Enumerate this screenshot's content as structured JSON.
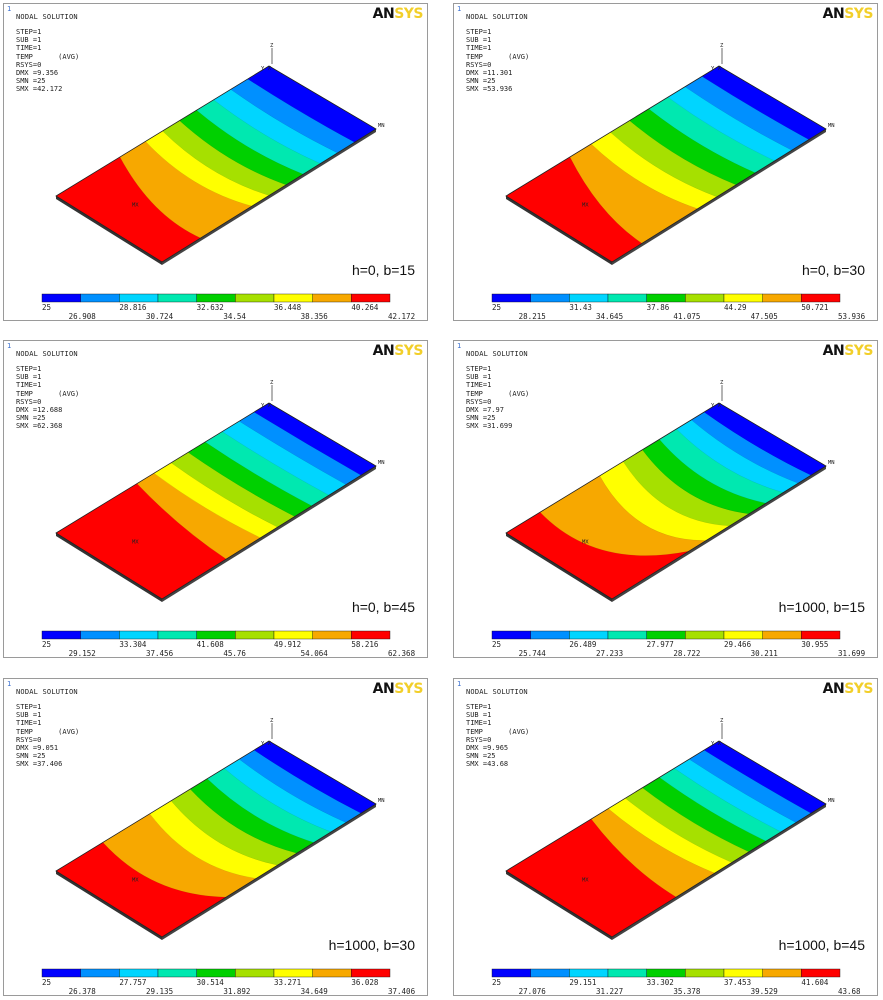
{
  "common": {
    "corner": "1",
    "title": "NODAL SOLUTION",
    "logo_main": "AN",
    "logo_suffix": "SYS",
    "min_label": "MN",
    "max_label": "MX",
    "axis_z": "Z",
    "axis_xy": "Y X"
  },
  "colors": [
    "#0000ff",
    "#0090ff",
    "#00d5ff",
    "#00e8b0",
    "#00d000",
    "#a6e000",
    "#ffff00",
    "#f7a800",
    "#ff0000"
  ],
  "panels": [
    {
      "caption": "h=0, b=15",
      "info": [
        "STEP=1",
        "SUB =1",
        "TIME=1",
        "TEMP      (AVG)",
        "RSYS=0",
        "DMX =9.356",
        "SMN =25",
        "SMX =42.172"
      ],
      "legend_top": [
        "25",
        "28.816",
        "32.632",
        "36.448",
        "40.264"
      ],
      "legend_bottom": [
        "26.908",
        "30.724",
        "34.54",
        "38.356",
        "42.172"
      ]
    },
    {
      "caption": "h=0, b=30",
      "info": [
        "STEP=1",
        "SUB =1",
        "TIME=1",
        "TEMP      (AVG)",
        "RSYS=0",
        "DMX =11.301",
        "SMN =25",
        "SMX =53.936"
      ],
      "legend_top": [
        "25",
        "31.43",
        "37.86",
        "44.29",
        "50.721"
      ],
      "legend_bottom": [
        "28.215",
        "34.645",
        "41.075",
        "47.505",
        "53.936"
      ]
    },
    {
      "caption": "h=0, b=45",
      "info": [
        "STEP=1",
        "SUB =1",
        "TIME=1",
        "TEMP      (AVG)",
        "RSYS=0",
        "DMX =12.688",
        "SMN =25",
        "SMX =62.368"
      ],
      "legend_top": [
        "25",
        "33.304",
        "41.608",
        "49.912",
        "58.216"
      ],
      "legend_bottom": [
        "29.152",
        "37.456",
        "45.76",
        "54.064",
        "62.368"
      ]
    },
    {
      "caption": "h=1000, b=15",
      "info": [
        "STEP=1",
        "SUB =1",
        "TIME=1",
        "TEMP      (AVG)",
        "RSYS=0",
        "DMX =7.97",
        "SMN =25",
        "SMX =31.699"
      ],
      "legend_top": [
        "25",
        "26.489",
        "27.977",
        "29.466",
        "30.955"
      ],
      "legend_bottom": [
        "25.744",
        "27.233",
        "28.722",
        "30.211",
        "31.699"
      ]
    },
    {
      "caption": "h=1000, b=30",
      "info": [
        "STEP=1",
        "SUB =1",
        "TIME=1",
        "TEMP      (AVG)",
        "RSYS=0",
        "DMX =9.051",
        "SMN =25",
        "SMX =37.406"
      ],
      "legend_top": [
        "25",
        "27.757",
        "30.514",
        "33.271",
        "36.028"
      ],
      "legend_bottom": [
        "26.378",
        "29.135",
        "31.892",
        "34.649",
        "37.406"
      ]
    },
    {
      "caption": "h=1000, b=45",
      "info": [
        "STEP=1",
        "SUB =1",
        "TIME=1",
        "TEMP      (AVG)",
        "RSYS=0",
        "DMX =9.965",
        "SMN =25",
        "SMX =43.68"
      ],
      "legend_top": [
        "25",
        "29.151",
        "33.302",
        "37.453",
        "41.604"
      ],
      "legend_bottom": [
        "27.076",
        "31.227",
        "35.378",
        "39.529",
        "43.68"
      ]
    }
  ]
}
